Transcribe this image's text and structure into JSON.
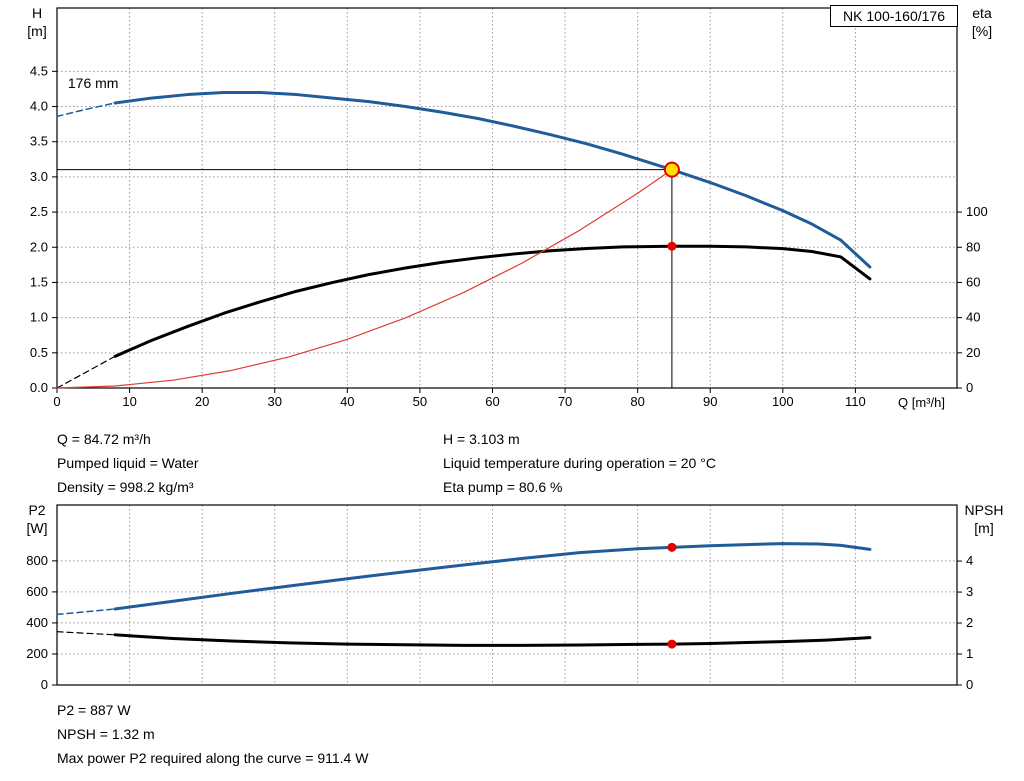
{
  "header": {
    "pump_label": "NK 100-160/176"
  },
  "colors": {
    "curve_blue": "#1f5c99",
    "curve_black": "#000000",
    "system_red": "#e03c32",
    "marker_red": "#e60000",
    "duty_yellow": "#ffe200",
    "grid": "#9a9a9a"
  },
  "chart_data": [
    {
      "type": "line",
      "name": "qh-eta-chart",
      "x": {
        "label": "Q [m³/h]",
        "min": 0,
        "max": 124,
        "ticks": [
          0,
          10,
          20,
          30,
          40,
          50,
          60,
          70,
          80,
          90,
          100,
          110
        ],
        "tick_labels": [
          "0",
          "10",
          "20",
          "30",
          "40",
          "50",
          "60",
          "70",
          "80",
          "90",
          "100",
          "110"
        ],
        "show_labels": true
      },
      "y_left": {
        "name": "H",
        "unit": "[m]",
        "min": 0,
        "max": 5.4,
        "ticks": [
          0,
          0.5,
          1,
          1.5,
          2,
          2.5,
          3,
          3.5,
          4,
          4.5
        ],
        "tick_labels": [
          "0.0",
          "0.5",
          "1.0",
          "1.5",
          "2.0",
          "2.5",
          "3.0",
          "3.5",
          "4.0",
          "4.5"
        ]
      },
      "y_right": {
        "name": "eta",
        "unit": "[%]",
        "min": 0,
        "max": 216,
        "ticks": [
          0,
          20,
          40,
          60,
          80,
          100
        ],
        "tick_labels": [
          "0",
          "20",
          "40",
          "60",
          "80",
          "100"
        ]
      },
      "series": [
        {
          "name": "h-curve-dashed",
          "axis": "left",
          "color": "curve_blue",
          "width": 1.5,
          "dash": "6 4",
          "points": [
            [
              0,
              3.86
            ],
            [
              4,
              3.96
            ],
            [
              8,
              4.05
            ]
          ]
        },
        {
          "name": "h-curve-176mm",
          "axis": "left",
          "color": "curve_blue",
          "width": 3,
          "points": [
            [
              8,
              4.05
            ],
            [
              13,
              4.12
            ],
            [
              18,
              4.17
            ],
            [
              23,
              4.2
            ],
            [
              28,
              4.2
            ],
            [
              33,
              4.17
            ],
            [
              38,
              4.12
            ],
            [
              43,
              4.07
            ],
            [
              48,
              4.0
            ],
            [
              53,
              3.92
            ],
            [
              58,
              3.83
            ],
            [
              63,
              3.72
            ],
            [
              68,
              3.6
            ],
            [
              73,
              3.47
            ],
            [
              78,
              3.32
            ],
            [
              84.72,
              3.103
            ],
            [
              90,
              2.92
            ],
            [
              95,
              2.73
            ],
            [
              100,
              2.52
            ],
            [
              104,
              2.33
            ],
            [
              108,
              2.1
            ],
            [
              112,
              1.72
            ]
          ]
        },
        {
          "name": "eta-curve-dashed",
          "axis": "right",
          "color": "curve_black",
          "width": 1.2,
          "dash": "6 4",
          "points": [
            [
              0,
              0
            ],
            [
              4,
              9
            ],
            [
              8,
              18
            ]
          ]
        },
        {
          "name": "eta-curve",
          "axis": "right",
          "color": "curve_black",
          "width": 3,
          "points": [
            [
              8,
              18
            ],
            [
              13,
              27
            ],
            [
              18,
              35
            ],
            [
              23,
              42.5
            ],
            [
              28,
              49
            ],
            [
              33,
              55
            ],
            [
              38,
              60
            ],
            [
              43,
              64.5
            ],
            [
              48,
              68.2
            ],
            [
              53,
              71.4
            ],
            [
              58,
              74
            ],
            [
              63,
              76.2
            ],
            [
              68,
              78
            ],
            [
              73,
              79.3
            ],
            [
              78,
              80.2
            ],
            [
              84.72,
              80.6
            ],
            [
              90,
              80.6
            ],
            [
              95,
              80.2
            ],
            [
              100,
              79.2
            ],
            [
              104,
              77.6
            ],
            [
              108,
              74.5
            ],
            [
              112,
              62
            ]
          ]
        },
        {
          "name": "system-curve",
          "axis": "left",
          "color": "system_red",
          "width": 1.2,
          "points": [
            [
              0,
              0
            ],
            [
              8,
              0.028
            ],
            [
              16,
              0.111
            ],
            [
              24,
              0.249
            ],
            [
              32,
              0.443
            ],
            [
              40,
              0.692
            ],
            [
              48,
              0.996
            ],
            [
              56,
              1.356
            ],
            [
              64,
              1.771
            ],
            [
              72,
              2.241
            ],
            [
              80,
              2.767
            ],
            [
              84.72,
              3.103
            ]
          ]
        }
      ],
      "lines": [
        {
          "name": "duty-h-line",
          "axis": "left",
          "color": "curve_black",
          "width": 1,
          "points": [
            [
              0,
              3.103
            ],
            [
              84.72,
              3.103
            ]
          ]
        },
        {
          "name": "duty-q-line",
          "axis": "left",
          "color": "curve_black",
          "width": 1,
          "points": [
            [
              84.72,
              0
            ],
            [
              84.72,
              3.103
            ]
          ]
        }
      ],
      "markers": [
        {
          "name": "duty-point",
          "x": 84.72,
          "y": 3.103,
          "axis": "left",
          "r": 7,
          "fill": "duty_yellow",
          "stroke": "marker_red",
          "stroke_width": 2,
          "interactable": true
        },
        {
          "name": "eta-point",
          "x": 84.72,
          "y": 80.6,
          "axis": "right",
          "r": 4.5,
          "fill": "marker_red"
        }
      ],
      "labels": [
        {
          "name": "impeller-size-label",
          "x": 1.5,
          "y": 4.26,
          "axis": "left",
          "text": "176 mm"
        }
      ]
    },
    {
      "type": "line",
      "name": "p2-npsh-chart",
      "x": {
        "label": "",
        "min": 0,
        "max": 124,
        "ticks": [
          0,
          10,
          20,
          30,
          40,
          50,
          60,
          70,
          80,
          90,
          100,
          110
        ],
        "tick_labels": [
          "0",
          "10",
          "20",
          "30",
          "40",
          "50",
          "60",
          "70",
          "80",
          "90",
          "100",
          "110"
        ],
        "show_labels": false
      },
      "y_left": {
        "name": "P2",
        "unit": "[W]",
        "min": 0,
        "max": 1160,
        "ticks": [
          0,
          200,
          400,
          600,
          800
        ],
        "tick_labels": [
          "0",
          "200",
          "400",
          "600",
          "800"
        ]
      },
      "y_right": {
        "name": "NPSH",
        "unit": "[m]",
        "min": 0,
        "max": 5.81,
        "ticks": [
          0,
          1,
          2,
          3,
          4
        ],
        "tick_labels": [
          "0",
          "1",
          "2",
          "3",
          "4"
        ]
      },
      "series": [
        {
          "name": "p2-curve-dashed",
          "axis": "left",
          "color": "curve_blue",
          "width": 1.5,
          "dash": "6 4",
          "points": [
            [
              0,
              455
            ],
            [
              4,
              472
            ],
            [
              8,
              490
            ]
          ]
        },
        {
          "name": "p2-curve",
          "axis": "left",
          "color": "curve_blue",
          "width": 3,
          "points": [
            [
              8,
              490
            ],
            [
              16,
              540
            ],
            [
              24,
              590
            ],
            [
              32,
              638
            ],
            [
              40,
              685
            ],
            [
              48,
              730
            ],
            [
              56,
              773
            ],
            [
              64,
              815
            ],
            [
              72,
              853
            ],
            [
              80,
              878
            ],
            [
              84.72,
              887
            ],
            [
              90,
              897
            ],
            [
              95,
              905
            ],
            [
              100,
              911
            ],
            [
              105,
              909
            ],
            [
              108,
              900
            ],
            [
              112,
              874
            ]
          ]
        },
        {
          "name": "npsh-curve-dashed",
          "axis": "right",
          "color": "curve_black",
          "width": 1.2,
          "dash": "6 4",
          "points": [
            [
              0,
              1.72
            ],
            [
              4,
              1.67
            ],
            [
              8,
              1.62
            ]
          ]
        },
        {
          "name": "npsh-curve",
          "axis": "right",
          "color": "curve_black",
          "width": 3,
          "points": [
            [
              8,
              1.62
            ],
            [
              16,
              1.5
            ],
            [
              24,
              1.42
            ],
            [
              32,
              1.36
            ],
            [
              40,
              1.32
            ],
            [
              48,
              1.3
            ],
            [
              56,
              1.28
            ],
            [
              64,
              1.28
            ],
            [
              72,
              1.29
            ],
            [
              80,
              1.31
            ],
            [
              84.72,
              1.32
            ],
            [
              90,
              1.34
            ],
            [
              95,
              1.37
            ],
            [
              100,
              1.4
            ],
            [
              106,
              1.45
            ],
            [
              112,
              1.53
            ]
          ]
        }
      ],
      "lines": [],
      "markers": [
        {
          "name": "p2-point",
          "x": 84.72,
          "y": 887,
          "axis": "left",
          "r": 4.5,
          "fill": "marker_red"
        },
        {
          "name": "npsh-point",
          "x": 84.72,
          "y": 1.32,
          "axis": "right",
          "r": 4.5,
          "fill": "marker_red"
        }
      ],
      "labels": []
    }
  ],
  "info_top": {
    "left": [
      "Q = 84.72 m³/h",
      "Pumped liquid = Water",
      "Density = 998.2 kg/m³"
    ],
    "right": [
      "H = 3.103 m",
      "Liquid temperature during operation = 20 °C",
      "Eta pump = 80.6 %"
    ]
  },
  "info_bottom": {
    "lines": [
      "P2 = 887 W",
      "NPSH = 1.32 m",
      "Max power P2 required along the curve = 911.4 W"
    ]
  }
}
